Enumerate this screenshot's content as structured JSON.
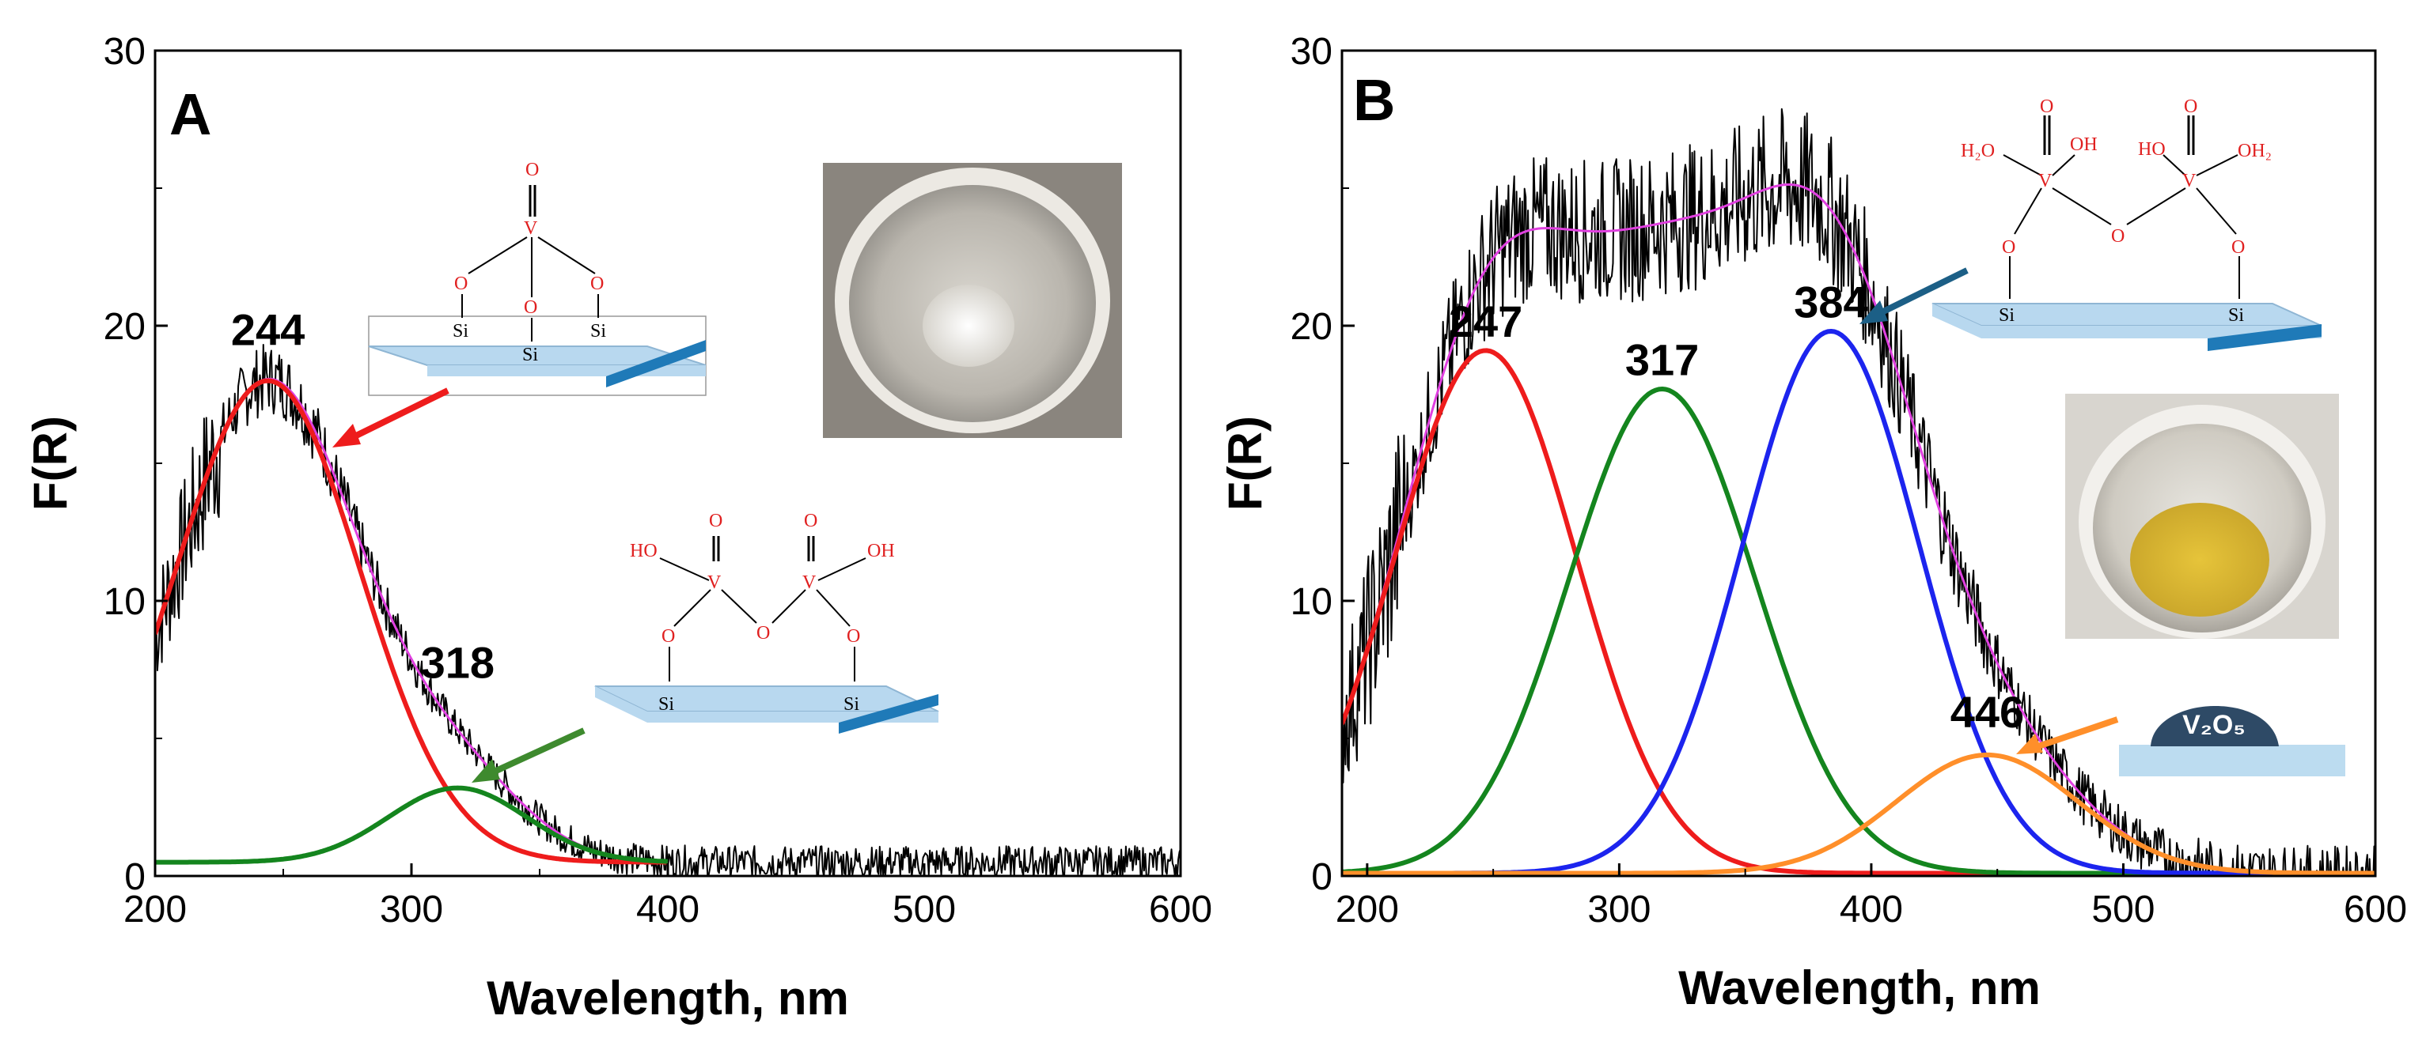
{
  "colors": {
    "noisy": "#000000",
    "fit": "#e040e0",
    "red": "#ee1c1c",
    "green": "#14851e",
    "blue": "#1c24ee",
    "orange": "#ff8f2a",
    "arrow_red": "#ee1c1c",
    "arrow_green": "#3e8a2e",
    "arrow_blue": "#1c5f86",
    "arrow_orange": "#ff8f2a",
    "surface": "#b8d8ef",
    "surface_edge": "#1f7ab8",
    "badge": "#2e4a66",
    "badge_surface": "#bcdcf0"
  },
  "chart_data": [
    {
      "type": "line",
      "panel": "A",
      "xlabel": "Wavelength, nm",
      "ylabel": "F(R)",
      "xlim": [
        200,
        600
      ],
      "ylim": [
        0,
        30
      ],
      "xticks": [
        200,
        300,
        400,
        500,
        600
      ],
      "yticks": [
        0,
        10,
        20,
        30
      ],
      "baseline": 0.5,
      "noise_amplitude": 0.6,
      "series": [
        {
          "name": "experimental",
          "style": "noisy",
          "color_key": "noisy",
          "components": [
            [
              244,
              17.5,
              36
            ],
            [
              318,
              2.7,
              27
            ]
          ],
          "baseline": 0.5,
          "x_range": [
            200,
            600
          ]
        },
        {
          "name": "sum fit",
          "color_key": "fit",
          "components": [
            [
              244,
              17.5,
              36
            ],
            [
              318,
              2.7,
              27
            ]
          ],
          "baseline": 0.5,
          "x_range": [
            200,
            400
          ]
        },
        {
          "name": "band 244",
          "color_key": "red",
          "components": [
            [
              244,
              17.5,
              36
            ]
          ],
          "baseline": 0.5,
          "x_range": [
            200,
            400
          ]
        },
        {
          "name": "band 318",
          "color_key": "green",
          "components": [
            [
              318,
              2.7,
              27
            ]
          ],
          "baseline": 0.5,
          "x_range": [
            200,
            400
          ]
        }
      ],
      "peak_labels": [
        {
          "text": "244",
          "x": 244,
          "y": 19.3
        },
        {
          "text": "318",
          "x": 318,
          "y": 7.2
        }
      ]
    },
    {
      "type": "line",
      "panel": "B",
      "xlabel": "Wavelength, nm",
      "ylabel": "F(R)",
      "xlim": [
        190,
        600
      ],
      "ylim": [
        0,
        30
      ],
      "xticks": [
        200,
        300,
        400,
        500,
        600
      ],
      "yticks": [
        0,
        10,
        20,
        30
      ],
      "baseline": 0.1,
      "noise_amplitude": 1.0,
      "series": [
        {
          "name": "experimental",
          "style": "noisy",
          "color_key": "noisy",
          "components": [
            [
              247,
              19.0,
              36
            ],
            [
              317,
              17.6,
              37
            ],
            [
              384,
              19.7,
              35
            ],
            [
              446,
              4.3,
              36
            ]
          ],
          "baseline": 0.1,
          "x_range": [
            190,
            600
          ]
        },
        {
          "name": "sum fit",
          "color_key": "fit",
          "components": [
            [
              247,
              19.0,
              36
            ],
            [
              317,
              17.6,
              37
            ],
            [
              384,
              19.7,
              35
            ],
            [
              446,
              4.3,
              36
            ]
          ],
          "baseline": 0.1,
          "x_range": [
            190,
            600
          ]
        },
        {
          "name": "band 247",
          "color_key": "red",
          "components": [
            [
              247,
              19.0,
              36
            ]
          ],
          "baseline": 0.1,
          "x_range": [
            190,
            600
          ]
        },
        {
          "name": "band 317",
          "color_key": "green",
          "components": [
            [
              317,
              17.6,
              37
            ]
          ],
          "baseline": 0.1,
          "x_range": [
            190,
            600
          ]
        },
        {
          "name": "band 384",
          "color_key": "blue",
          "components": [
            [
              384,
              19.7,
              35
            ]
          ],
          "baseline": 0.1,
          "x_range": [
            190,
            600
          ]
        },
        {
          "name": "band 446",
          "color_key": "orange",
          "components": [
            [
              446,
              4.3,
              36
            ]
          ],
          "baseline": 0.1,
          "x_range": [
            190,
            600
          ]
        }
      ],
      "peak_labels": [
        {
          "text": "247",
          "x": 247,
          "y": 19.6
        },
        {
          "text": "317",
          "x": 317,
          "y": 18.2
        },
        {
          "text": "384",
          "x": 384,
          "y": 20.3
        },
        {
          "text": "446",
          "x": 446,
          "y": 5.4
        }
      ]
    }
  ],
  "insets": {
    "chem_o": "O",
    "chem_v": "V",
    "chem_si": "Si",
    "chem_ho": "HO",
    "chem_oh": "OH",
    "chem_h2o": "H₂O",
    "chem_oh2": "OH₂",
    "badge_text": "V₂O₅"
  }
}
